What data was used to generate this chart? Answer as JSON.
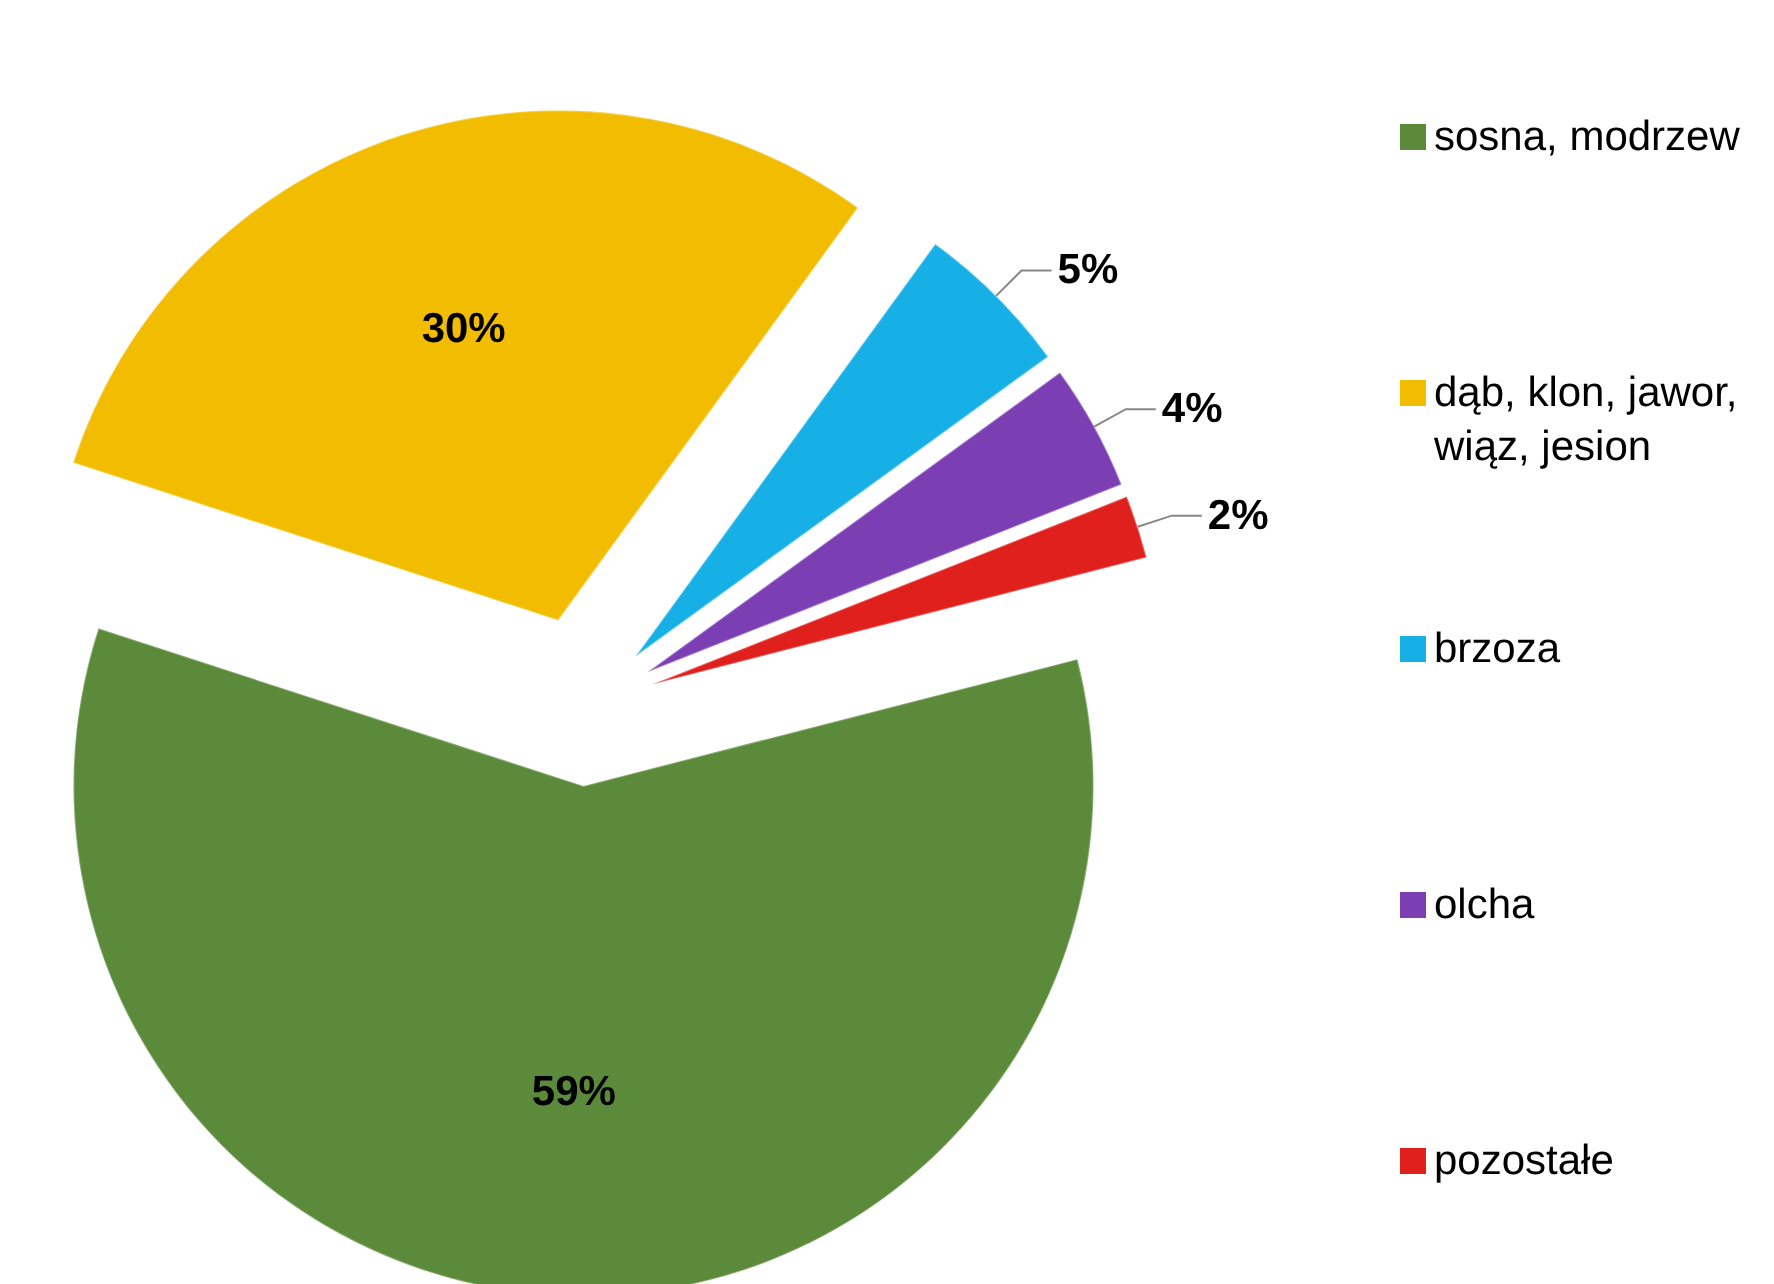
{
  "chart_data": {
    "type": "pie",
    "categories": [
      "sosna, modrzew",
      "dąb, klon, jawor, wiąz, jesion",
      "brzoza",
      "olcha",
      "pozostałe"
    ],
    "values": [
      59,
      30,
      5,
      4,
      2
    ],
    "colors": [
      "#5b8a3a",
      "#f2bd00",
      "#16b0e6",
      "#7b3fb3",
      "#e0201c"
    ],
    "value_labels": [
      "59%",
      "30%",
      "5%",
      "4%",
      "2%"
    ],
    "legend": "right"
  }
}
